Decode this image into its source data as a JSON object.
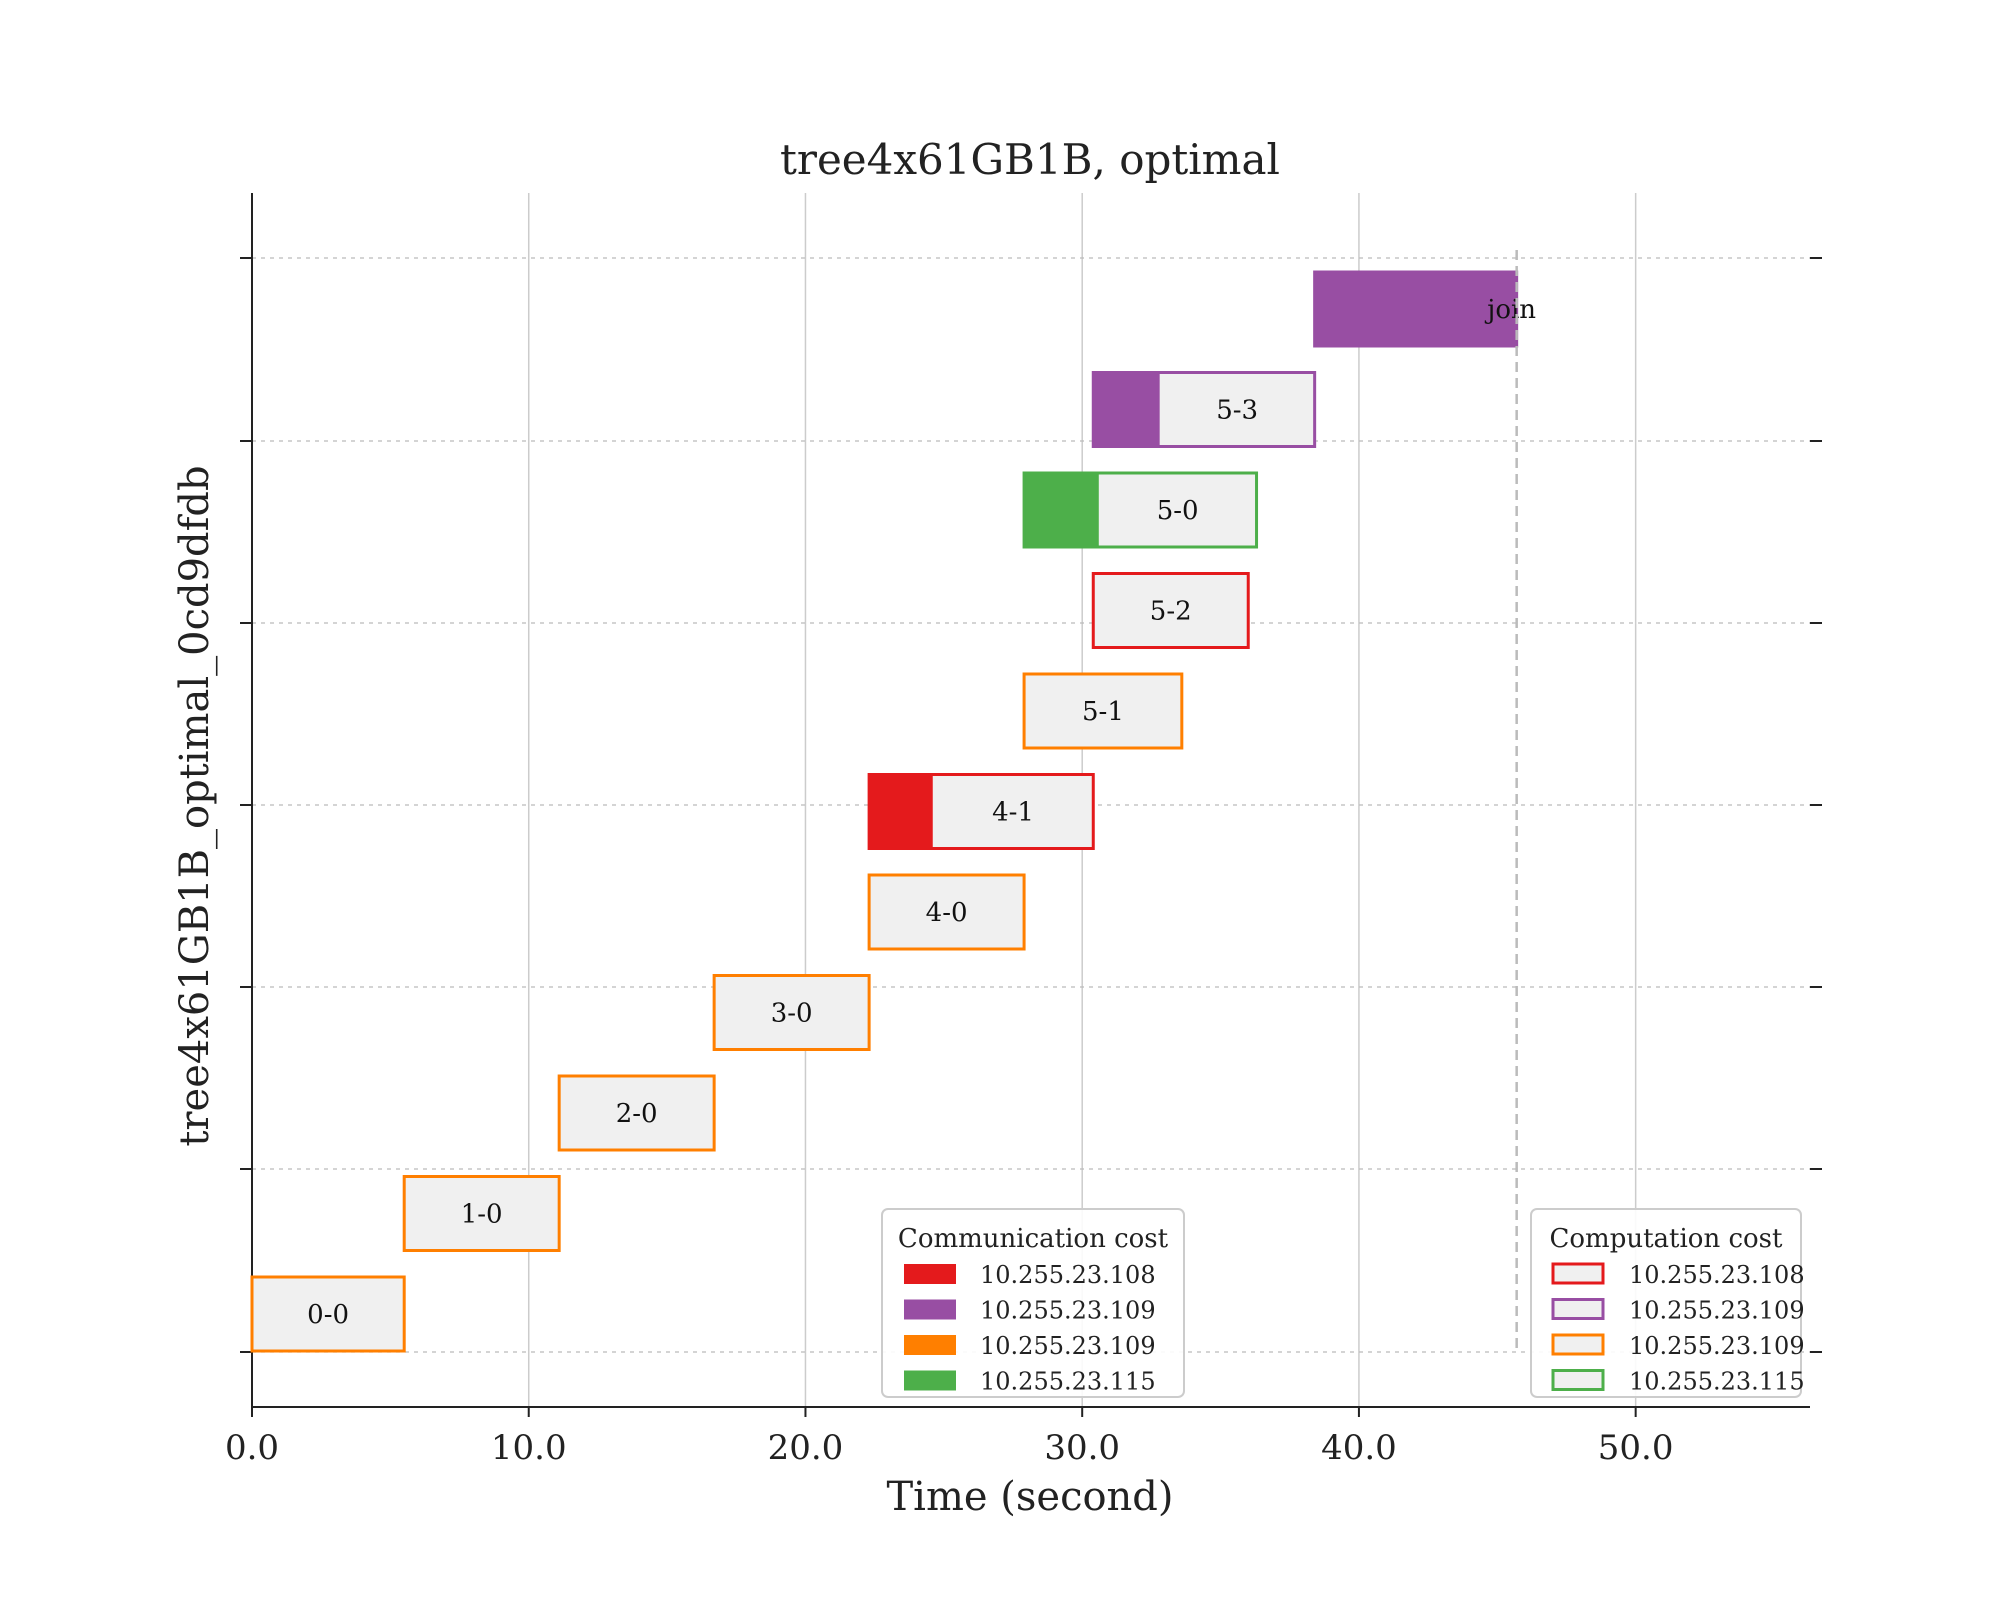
{
  "chart_data": {
    "type": "gantt",
    "title": "tree4x61GB1B, optimal",
    "xlabel": "Time (second)",
    "ylabel": "tree4x61GB1B_optimal_0cd9dfdb",
    "xlim": [
      0,
      56.3
    ],
    "xticks": [
      0,
      10,
      20,
      30,
      40,
      50
    ],
    "xtick_labels": [
      "0.0",
      "10.0",
      "20.0",
      "30.0",
      "40.0",
      "50.0"
    ],
    "grid": "vertical solid; horizontal dotted",
    "colors": {
      "red": "#e41a1c",
      "purple": "#984ea3",
      "orange": "#ff7f00",
      "green": "#4daf4a",
      "compute_fill": "#f0f0f0"
    },
    "tasks": [
      {
        "label": "0-0",
        "comm_start": 0.0,
        "comm_end": 0.0,
        "end": 5.5,
        "color": "orange"
      },
      {
        "label": "1-0",
        "comm_start": 5.5,
        "comm_end": 5.5,
        "end": 11.1,
        "color": "orange"
      },
      {
        "label": "2-0",
        "comm_start": 11.1,
        "comm_end": 11.1,
        "end": 16.7,
        "color": "orange"
      },
      {
        "label": "3-0",
        "comm_start": 16.7,
        "comm_end": 16.7,
        "end": 22.3,
        "color": "orange"
      },
      {
        "label": "4-0",
        "comm_start": 22.3,
        "comm_end": 22.3,
        "end": 27.9,
        "color": "orange"
      },
      {
        "label": "4-1",
        "comm_start": 22.3,
        "comm_end": 24.6,
        "end": 30.4,
        "color": "red"
      },
      {
        "label": "5-1",
        "comm_start": 27.9,
        "comm_end": 27.9,
        "end": 33.6,
        "color": "orange"
      },
      {
        "label": "5-2",
        "comm_start": 30.4,
        "comm_end": 30.4,
        "end": 36.0,
        "color": "red"
      },
      {
        "label": "5-0",
        "comm_start": 27.9,
        "comm_end": 30.6,
        "end": 36.3,
        "color": "green"
      },
      {
        "label": "5-3",
        "comm_start": 30.4,
        "comm_end": 32.8,
        "end": 38.4,
        "color": "purple"
      },
      {
        "label": "join",
        "comm_start": 38.4,
        "comm_end": 45.7,
        "end": 45.7,
        "color": "purple"
      }
    ],
    "end_marker": 45.7,
    "legends": [
      {
        "title": "Communication cost",
        "style": "filled",
        "entries": [
          {
            "label": "10.255.23.108",
            "color": "red"
          },
          {
            "label": "10.255.23.109",
            "color": "purple"
          },
          {
            "label": "10.255.23.109",
            "color": "orange"
          },
          {
            "label": "10.255.23.115",
            "color": "green"
          }
        ]
      },
      {
        "title": "Computation cost",
        "style": "outline",
        "entries": [
          {
            "label": "10.255.23.108",
            "color": "red"
          },
          {
            "label": "10.255.23.109",
            "color": "purple"
          },
          {
            "label": "10.255.23.109",
            "color": "orange"
          },
          {
            "label": "10.255.23.115",
            "color": "green"
          }
        ]
      }
    ]
  }
}
